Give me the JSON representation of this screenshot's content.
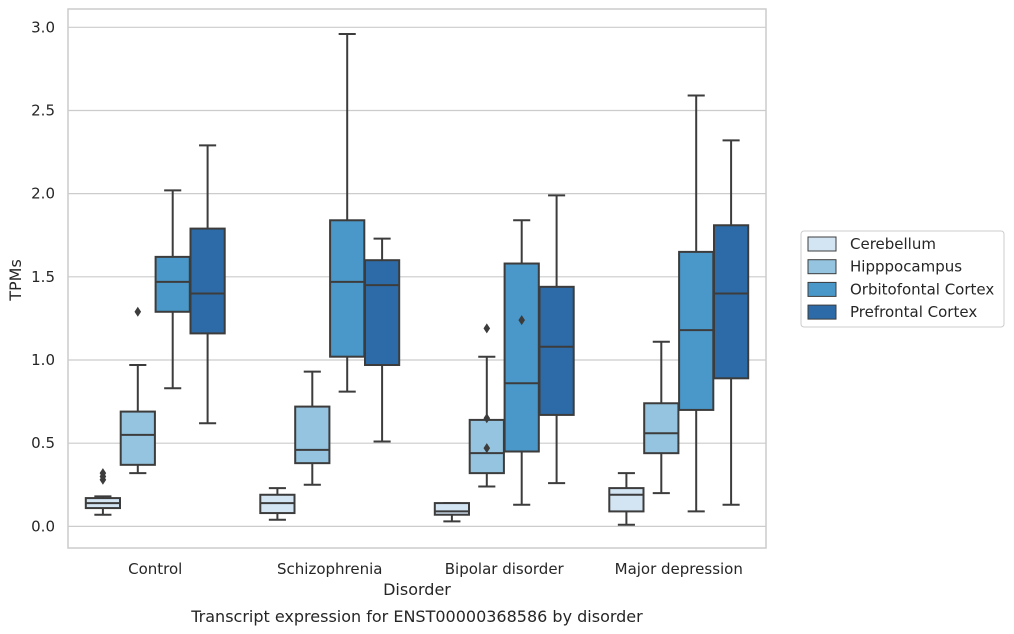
{
  "chart_data": {
    "type": "box",
    "title": "",
    "caption": "Transcript expression for ENST00000368586 by disorder",
    "xlabel": "Disorder",
    "ylabel": "TPMs",
    "ylim": [
      -0.13,
      3.11
    ],
    "yticks": [
      "0.0",
      "0.5",
      "1.0",
      "1.5",
      "2.0",
      "2.5",
      "3.0"
    ],
    "grid": "horizontal",
    "legend_position": "right",
    "categories": [
      "Control",
      "Schizophrenia",
      "Bipolar disorder",
      "Major depression"
    ],
    "series": [
      {
        "name": "Cerebellum",
        "color": "#d3e4f3",
        "boxes": [
          {
            "whislo": 0.07,
            "q1": 0.11,
            "med": 0.14,
            "q3": 0.17,
            "whishi": 0.18,
            "fliers": [
              0.28,
              0.3,
              0.32
            ]
          },
          {
            "whislo": 0.04,
            "q1": 0.08,
            "med": 0.14,
            "q3": 0.19,
            "whishi": 0.23,
            "fliers": []
          },
          {
            "whislo": 0.03,
            "q1": 0.07,
            "med": 0.09,
            "q3": 0.14,
            "whishi": 0.14,
            "fliers": []
          },
          {
            "whislo": 0.01,
            "q1": 0.09,
            "med": 0.19,
            "q3": 0.23,
            "whishi": 0.32,
            "fliers": []
          }
        ]
      },
      {
        "name": "Hipppocampus",
        "color": "#94c4df",
        "boxes": [
          {
            "whislo": 0.32,
            "q1": 0.37,
            "med": 0.55,
            "q3": 0.69,
            "whishi": 0.97,
            "fliers": [
              1.29
            ]
          },
          {
            "whislo": 0.25,
            "q1": 0.38,
            "med": 0.46,
            "q3": 0.72,
            "whishi": 0.93,
            "fliers": []
          },
          {
            "whislo": 0.24,
            "q1": 0.32,
            "med": 0.44,
            "q3": 0.64,
            "whishi": 1.02,
            "fliers": [
              0.47,
              0.65,
              1.19
            ]
          },
          {
            "whislo": 0.2,
            "q1": 0.44,
            "med": 0.56,
            "q3": 0.74,
            "whishi": 1.11,
            "fliers": []
          }
        ]
      },
      {
        "name": "Orbitofontal Cortex",
        "color": "#4a98c9",
        "boxes": [
          {
            "whislo": 0.83,
            "q1": 1.29,
            "med": 1.47,
            "q3": 1.62,
            "whishi": 2.02,
            "fliers": []
          },
          {
            "whislo": 0.81,
            "q1": 1.02,
            "med": 1.47,
            "q3": 1.84,
            "whishi": 2.96,
            "fliers": []
          },
          {
            "whislo": 0.13,
            "q1": 0.45,
            "med": 0.86,
            "q3": 1.58,
            "whishi": 1.84,
            "fliers": [
              1.24
            ]
          },
          {
            "whislo": 0.09,
            "q1": 0.7,
            "med": 1.18,
            "q3": 1.65,
            "whishi": 2.59,
            "fliers": []
          }
        ]
      },
      {
        "name": "Prefrontal Cortex",
        "color": "#2c6ba8",
        "boxes": [
          {
            "whislo": 0.62,
            "q1": 1.16,
            "med": 1.4,
            "q3": 1.79,
            "whishi": 2.29,
            "fliers": []
          },
          {
            "whislo": 0.51,
            "q1": 0.97,
            "med": 1.45,
            "q3": 1.6,
            "whishi": 1.73,
            "fliers": []
          },
          {
            "whislo": 0.26,
            "q1": 0.67,
            "med": 1.08,
            "q3": 1.44,
            "whishi": 1.99,
            "fliers": []
          },
          {
            "whislo": 0.13,
            "q1": 0.89,
            "med": 1.4,
            "q3": 1.81,
            "whishi": 2.32,
            "fliers": []
          }
        ]
      }
    ]
  }
}
